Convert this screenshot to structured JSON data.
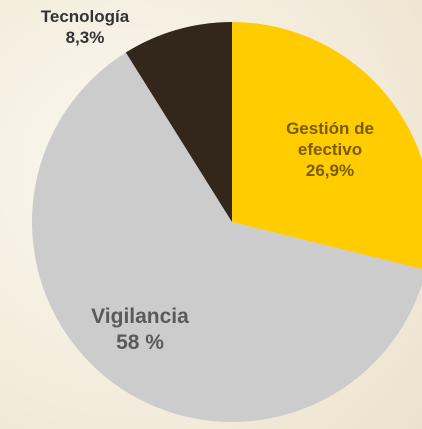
{
  "chart_data": {
    "type": "pie",
    "categories": [
      "Gestión de efectivo",
      "Vigilancia",
      "Tecnología"
    ],
    "values": [
      26.9,
      58,
      8.3
    ],
    "value_labels": [
      "26,9%",
      "58 %",
      "8,3%"
    ],
    "colors": [
      "#ffcc00",
      "#cccccc",
      "#33261a"
    ]
  }
}
